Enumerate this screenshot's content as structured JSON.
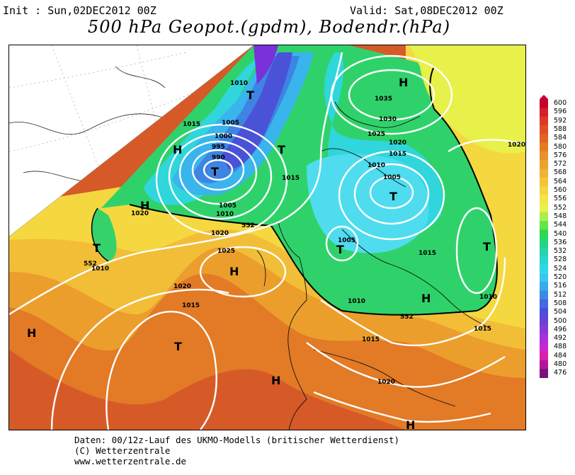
{
  "header": {
    "init": "Init : Sun,02DEC2012 00Z",
    "valid": "Valid: Sat,08DEC2012 00Z",
    "title": "500 hPa Geopot.(gpdm), Bodendr.(hPa)"
  },
  "footer": {
    "line1": "Daten: 00/12z-Lauf des UKMO-Modells (britischer Wetterdienst)",
    "line2": "(C) Wetterzentrale",
    "line3": "www.wetterzentrale.de"
  },
  "scale": {
    "values": [
      "600",
      "596",
      "592",
      "588",
      "584",
      "580",
      "576",
      "572",
      "568",
      "564",
      "560",
      "556",
      "552",
      "548",
      "544",
      "540",
      "536",
      "532",
      "528",
      "524",
      "520",
      "516",
      "512",
      "508",
      "504",
      "500",
      "496",
      "492",
      "488",
      "484",
      "480",
      "476"
    ],
    "colors": [
      "#c8002d",
      "#d5202a",
      "#dc3a26",
      "#e05024",
      "#e26322",
      "#e57a22",
      "#e8902a",
      "#eba22e",
      "#efb334",
      "#f2c43a",
      "#f4d440",
      "#f6e346",
      "#e8f04a",
      "#a8ef4a",
      "#62e64c",
      "#2ed84f",
      "#25d47e",
      "#27d3a8",
      "#2ad5cc",
      "#2fd8e8",
      "#35c8f0",
      "#3aaae8",
      "#3d8ae2",
      "#406ade",
      "#4a4ed8",
      "#6a40d8",
      "#8a38d8",
      "#aa30d8",
      "#c828d0",
      "#d820b0",
      "#b01898",
      "#7a1078"
    ]
  },
  "map_labels": {
    "highs": [
      "H",
      "H",
      "H",
      "H",
      "H",
      "H",
      "H",
      "H"
    ],
    "lows": [
      "T",
      "T",
      "T",
      "T",
      "T",
      "T",
      "T",
      "T"
    ],
    "isobars": [
      "1010",
      "1015",
      "1005",
      "1000",
      "995",
      "990",
      "1005",
      "1010",
      "1015",
      "1020",
      "1010",
      "1020",
      "1025",
      "1020",
      "1015",
      "1035",
      "1030",
      "1025",
      "1020",
      "1015",
      "1010",
      "1005",
      "1005",
      "1015",
      "1010",
      "1010",
      "1015",
      "1015",
      "1020",
      "1020"
    ],
    "contour_552": [
      "552",
      "552",
      "552"
    ]
  }
}
